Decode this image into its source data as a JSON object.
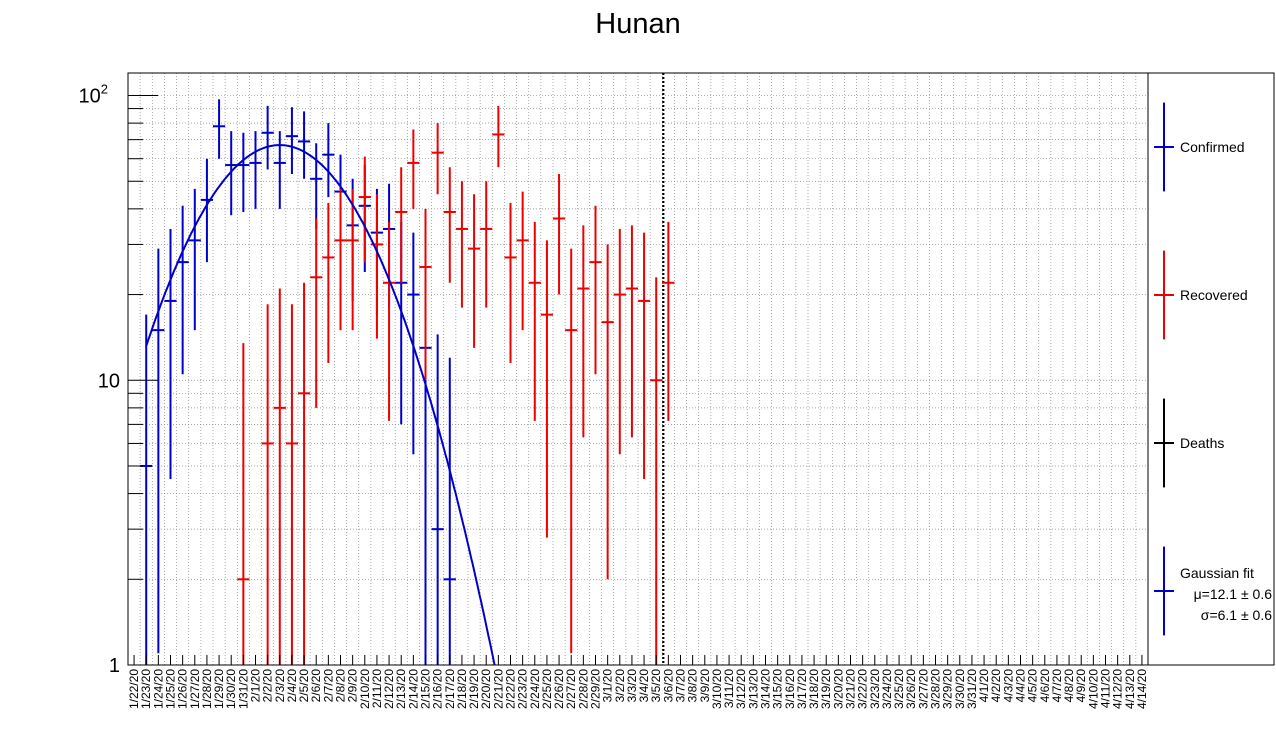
{
  "chart_data": {
    "type": "scatter",
    "title": "Hunan",
    "xlabel": "",
    "ylabel": "",
    "y_scale": "log",
    "ylim": [
      1,
      120
    ],
    "y_ticks": [
      {
        "value": 1,
        "base": "1",
        "exp": ""
      },
      {
        "value": 10,
        "base": "10",
        "exp": ""
      },
      {
        "value": 100,
        "base": "10",
        "exp": "2"
      }
    ],
    "grid": true,
    "legend_position": "right",
    "x_labels": [
      "1/22/20",
      "1/23/20",
      "1/24/20",
      "1/25/20",
      "1/26/20",
      "1/27/20",
      "1/28/20",
      "1/29/20",
      "1/30/20",
      "1/31/20",
      "2/1/20",
      "2/2/20",
      "2/3/20",
      "2/4/20",
      "2/5/20",
      "2/6/20",
      "2/7/20",
      "2/8/20",
      "2/9/20",
      "2/10/20",
      "2/11/20",
      "2/12/20",
      "2/13/20",
      "2/14/20",
      "2/15/20",
      "2/16/20",
      "2/17/20",
      "2/18/20",
      "2/19/20",
      "2/20/20",
      "2/21/20",
      "2/22/20",
      "2/23/20",
      "2/24/20",
      "2/25/20",
      "2/26/20",
      "2/27/20",
      "2/28/20",
      "2/29/20",
      "3/1/20",
      "3/2/20",
      "3/3/20",
      "3/4/20",
      "3/5/20",
      "3/6/20",
      "3/7/20",
      "3/8/20",
      "3/9/20",
      "3/10/20",
      "3/11/20",
      "3/12/20",
      "3/13/20",
      "3/14/20",
      "3/15/20",
      "3/16/20",
      "3/17/20",
      "3/18/20",
      "3/19/20",
      "3/20/20",
      "3/21/20",
      "3/22/20",
      "3/23/20",
      "3/24/20",
      "3/25/20",
      "3/26/20",
      "3/27/20",
      "3/28/20",
      "3/29/20",
      "3/30/20",
      "3/31/20",
      "4/1/20",
      "4/2/20",
      "4/3/20",
      "4/4/20",
      "4/5/20",
      "4/6/20",
      "4/7/20",
      "4/8/20",
      "4/9/20",
      "4/10/20",
      "4/11/20",
      "4/12/20",
      "4/13/20",
      "4/14/20"
    ],
    "vertical_marker": {
      "date": "3/5/20",
      "style": "dotted"
    },
    "series": [
      {
        "name": "Confirmed",
        "color": "#0000cc",
        "points": [
          {
            "x": "1/23/20",
            "y": 5,
            "err": [
              1,
              17
            ]
          },
          {
            "x": "1/24/20",
            "y": 15,
            "err": [
              1.1,
              29
            ]
          },
          {
            "x": "1/25/20",
            "y": 19,
            "err": [
              4.5,
              34
            ]
          },
          {
            "x": "1/26/20",
            "y": 26,
            "err": [
              10.5,
              41
            ]
          },
          {
            "x": "1/27/20",
            "y": 31,
            "err": [
              15,
              47
            ]
          },
          {
            "x": "1/28/20",
            "y": 43,
            "err": [
              26,
              60
            ]
          },
          {
            "x": "1/29/20",
            "y": 78,
            "err": [
              60,
              97
            ]
          },
          {
            "x": "1/30/20",
            "y": 57,
            "err": [
              38,
              75
            ]
          },
          {
            "x": "1/31/20",
            "y": 57,
            "err": [
              39,
              74
            ]
          },
          {
            "x": "2/1/20",
            "y": 58,
            "err": [
              40,
              75
            ]
          },
          {
            "x": "2/2/20",
            "y": 74,
            "err": [
              55,
              92
            ]
          },
          {
            "x": "2/3/20",
            "y": 58,
            "err": [
              40,
              75
            ]
          },
          {
            "x": "2/4/20",
            "y": 72,
            "err": [
              53,
              91
            ]
          },
          {
            "x": "2/5/20",
            "y": 69,
            "err": [
              51,
              88
            ]
          },
          {
            "x": "2/6/20",
            "y": 51,
            "err": [
              34,
              68
            ]
          },
          {
            "x": "2/7/20",
            "y": 62,
            "err": [
              44,
              80
            ]
          },
          {
            "x": "2/8/20",
            "y": 46,
            "err": [
              29,
              62
            ]
          },
          {
            "x": "2/9/20",
            "y": 35,
            "err": [
              19,
              51
            ]
          },
          {
            "x": "2/10/20",
            "y": 41,
            "err": [
              24,
              57
            ]
          },
          {
            "x": "2/11/20",
            "y": 33,
            "err": [
              17,
              47
            ]
          },
          {
            "x": "2/12/20",
            "y": 34,
            "err": [
              18,
              49
            ]
          },
          {
            "x": "2/13/20",
            "y": 22,
            "err": [
              7,
              36
            ]
          },
          {
            "x": "2/14/20",
            "y": 20,
            "err": [
              5.5,
              33
            ]
          },
          {
            "x": "2/15/20",
            "y": 13,
            "err": [
              1,
              26
            ]
          },
          {
            "x": "2/16/20",
            "y": 3,
            "err": [
              1,
              14.5
            ]
          },
          {
            "x": "2/17/20",
            "y": 2,
            "err": [
              1,
              12
            ]
          }
        ]
      },
      {
        "name": "Recovered",
        "color": "#ee0000",
        "points": [
          {
            "x": "1/31/20",
            "y": 2,
            "err": [
              1,
              13.5
            ]
          },
          {
            "x": "2/2/20",
            "y": 6,
            "err": [
              1,
              18.5
            ]
          },
          {
            "x": "2/3/20",
            "y": 8,
            "err": [
              1,
              21
            ]
          },
          {
            "x": "2/4/20",
            "y": 6,
            "err": [
              1,
              18.5
            ]
          },
          {
            "x": "2/5/20",
            "y": 9,
            "err": [
              1,
              22
            ]
          },
          {
            "x": "2/6/20",
            "y": 23,
            "err": [
              8,
              37
            ]
          },
          {
            "x": "2/7/20",
            "y": 27,
            "err": [
              11.5,
              42
            ]
          },
          {
            "x": "2/8/20",
            "y": 31,
            "err": [
              15,
              47
            ]
          },
          {
            "x": "2/9/20",
            "y": 31,
            "err": [
              15,
              47
            ]
          },
          {
            "x": "2/10/20",
            "y": 44,
            "err": [
              26,
              61
            ]
          },
          {
            "x": "2/11/20",
            "y": 30,
            "err": [
              14,
              45
            ]
          },
          {
            "x": "2/12/20",
            "y": 22,
            "err": [
              7.2,
              36
            ]
          },
          {
            "x": "2/13/20",
            "y": 39,
            "err": [
              22,
              56
            ]
          },
          {
            "x": "2/14/20",
            "y": 58,
            "err": [
              40,
              76
            ]
          },
          {
            "x": "2/15/20",
            "y": 25,
            "err": [
              10,
              40
            ]
          },
          {
            "x": "2/16/20",
            "y": 63,
            "err": [
              45,
              80
            ]
          },
          {
            "x": "2/17/20",
            "y": 39,
            "err": [
              22,
              56
            ]
          },
          {
            "x": "2/18/20",
            "y": 34,
            "err": [
              18,
              50
            ]
          },
          {
            "x": "2/19/20",
            "y": 29,
            "err": [
              13,
              45
            ]
          },
          {
            "x": "2/20/20",
            "y": 34,
            "err": [
              18,
              50
            ]
          },
          {
            "x": "2/21/20",
            "y": 73,
            "err": [
              56,
              92
            ]
          },
          {
            "x": "2/22/20",
            "y": 27,
            "err": [
              11.5,
              42
            ]
          },
          {
            "x": "2/23/20",
            "y": 31,
            "err": [
              15,
              46
            ]
          },
          {
            "x": "2/24/20",
            "y": 22,
            "err": [
              7.2,
              36
            ]
          },
          {
            "x": "2/25/20",
            "y": 17,
            "err": [
              2.8,
              31
            ]
          },
          {
            "x": "2/26/20",
            "y": 37,
            "err": [
              20,
              53
            ]
          },
          {
            "x": "2/27/20",
            "y": 15,
            "err": [
              1.1,
              29
            ]
          },
          {
            "x": "2/28/20",
            "y": 21,
            "err": [
              6.3,
              35
            ]
          },
          {
            "x": "2/29/20",
            "y": 26,
            "err": [
              10.5,
              41
            ]
          },
          {
            "x": "3/1/20",
            "y": 16,
            "err": [
              2,
              30
            ]
          },
          {
            "x": "3/2/20",
            "y": 20,
            "err": [
              5.5,
              34
            ]
          },
          {
            "x": "3/3/20",
            "y": 21,
            "err": [
              6.3,
              35
            ]
          },
          {
            "x": "3/4/20",
            "y": 19,
            "err": [
              4.5,
              33
            ]
          },
          {
            "x": "3/5/20",
            "y": 10,
            "err": [
              1,
              23
            ]
          },
          {
            "x": "3/6/20",
            "y": 22,
            "err": [
              7.2,
              36
            ]
          }
        ]
      },
      {
        "name": "Deaths",
        "color": "#000000",
        "points": []
      }
    ],
    "fit": {
      "type": "gaussian",
      "color": "#0000cc",
      "amplitude": 67,
      "mean_x": "2/3/20",
      "sigma_days": 6.1,
      "x_range": [
        "1/23/20",
        "2/21/20"
      ]
    },
    "legend": [
      {
        "label": "Confirmed",
        "color": "#0000cc"
      },
      {
        "label": "Recovered",
        "color": "#ee0000"
      },
      {
        "label": "Deaths",
        "color": "#000000"
      },
      {
        "label": "Gaussian fit",
        "color": "#0000cc",
        "extra_lines": [
          "μ=12.1 ± 0.6",
          "σ=6.1 ± 0.6"
        ]
      }
    ]
  }
}
